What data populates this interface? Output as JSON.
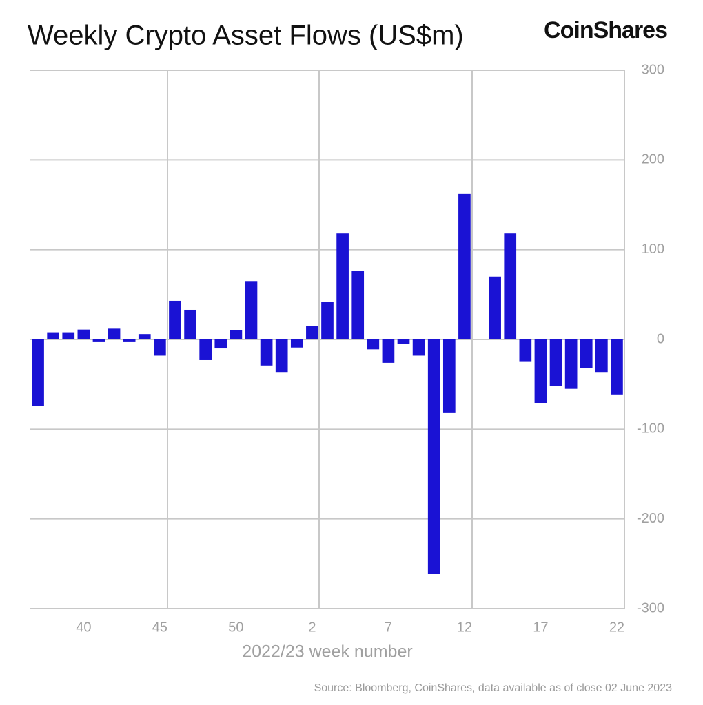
{
  "chart_data": {
    "type": "bar",
    "title": "Weekly Crypto Asset Flows (US$m)",
    "brand": "CoinShares",
    "x_label": "2022/23 week number",
    "source": "Source: Bloomberg, CoinShares, data available as of close 02 June 2023",
    "categories": [
      null,
      null,
      null,
      "40",
      null,
      null,
      null,
      null,
      "45",
      null,
      null,
      null,
      null,
      "50",
      null,
      null,
      null,
      null,
      "2",
      null,
      null,
      null,
      null,
      "7",
      null,
      null,
      null,
      null,
      "12",
      null,
      null,
      null,
      null,
      "17",
      null,
      null,
      null,
      null,
      "22"
    ],
    "values": [
      -74,
      8,
      8,
      11,
      -3,
      12,
      -3,
      6,
      -18,
      43,
      33,
      -23,
      -10,
      10,
      65,
      -29,
      -37,
      -9,
      15,
      42,
      118,
      76,
      -11,
      -26,
      -5,
      -18,
      -261,
      -82,
      162,
      0,
      70,
      118,
      -25,
      -71,
      -52,
      -55,
      -32,
      -37,
      -62
    ],
    "color": "#1a12d4",
    "ylim": [
      -300,
      300
    ],
    "yticks": [
      -300,
      -200,
      -100,
      0,
      100,
      200,
      300
    ],
    "grid": true
  }
}
